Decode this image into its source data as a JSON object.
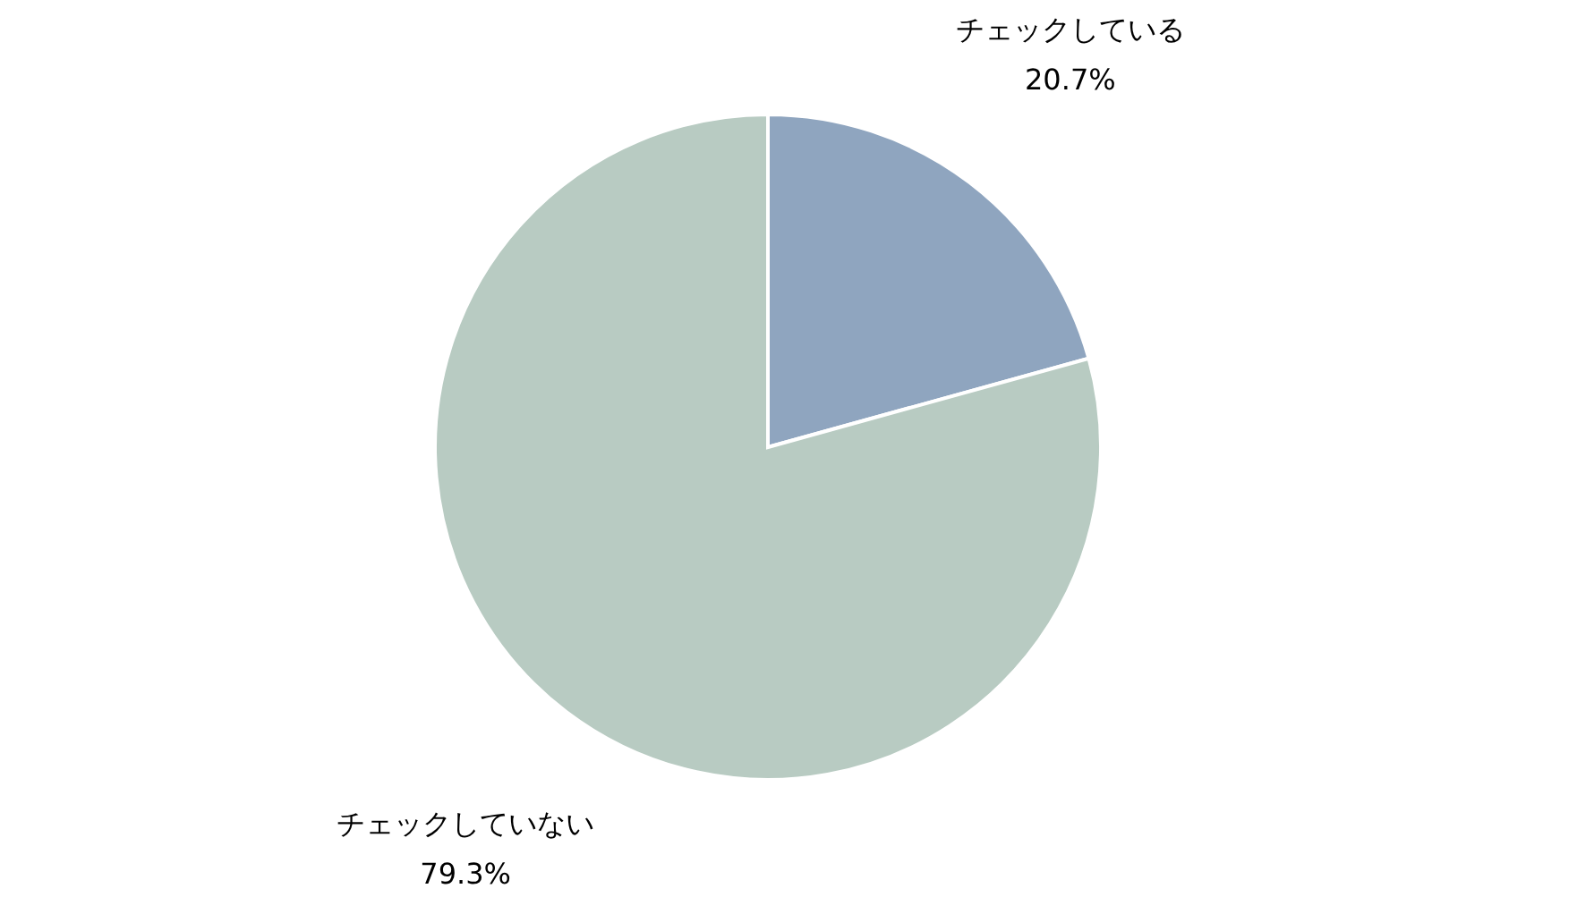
{
  "chart_data": {
    "type": "pie",
    "categories": [
      "チェックしている",
      "チェックしていない"
    ],
    "values": [
      20.7,
      79.3
    ],
    "value_labels": [
      "20.7%",
      "79.3%"
    ],
    "colors": [
      "#8fa5bf",
      "#b8cbc2"
    ]
  }
}
